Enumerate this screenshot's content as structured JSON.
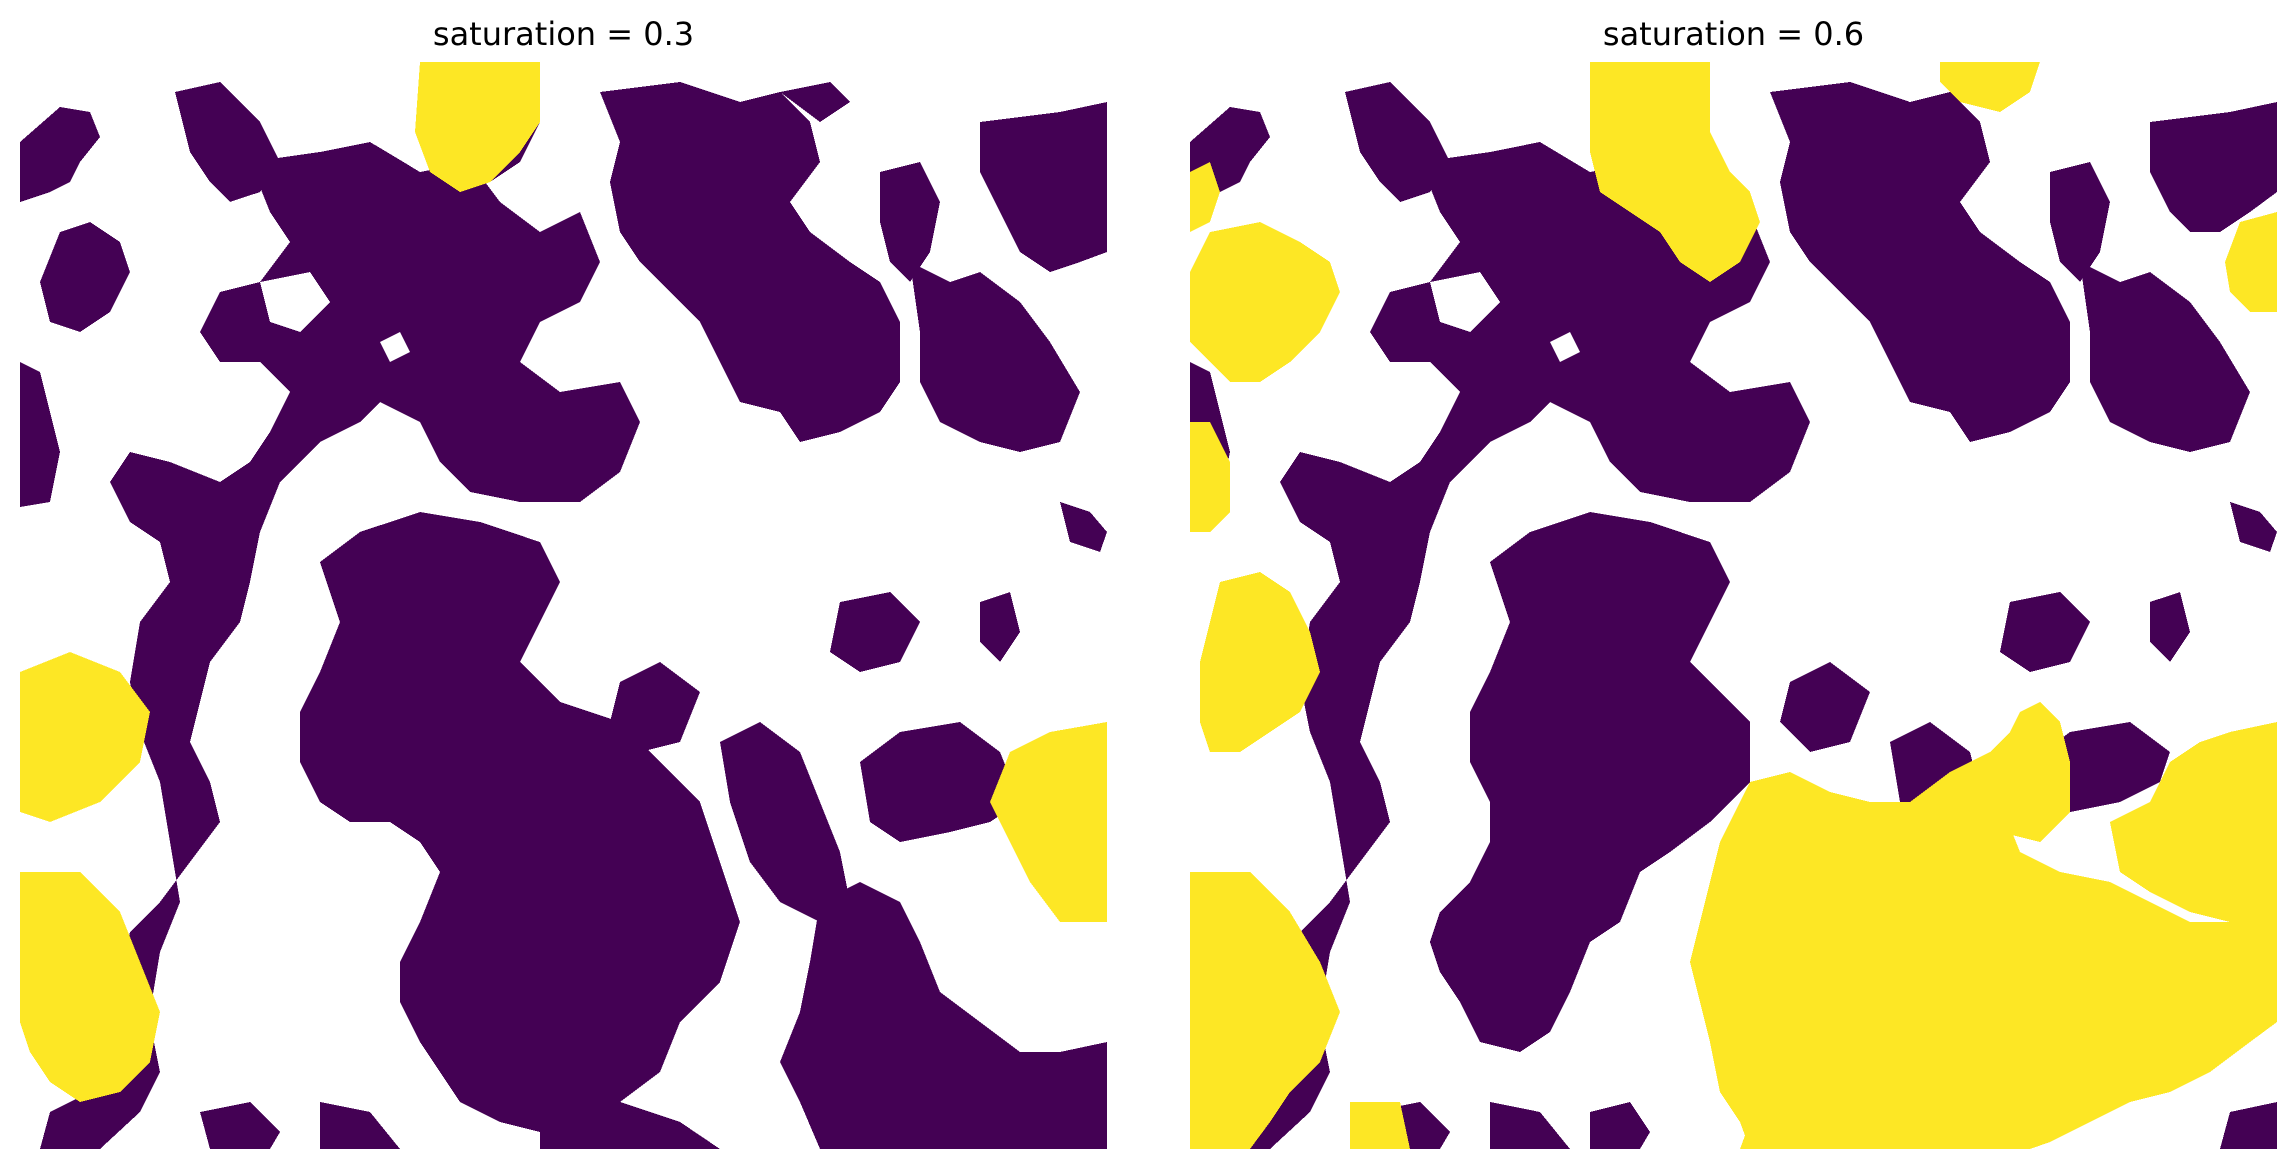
{
  "panels": [
    {
      "title": "saturation = 0.3"
    },
    {
      "title": "saturation = 0.6"
    }
  ],
  "colors": {
    "solid": "#ffffff",
    "pore_empty": "#440154",
    "pore_filled": "#fde725",
    "background": "#ffffff"
  }
}
